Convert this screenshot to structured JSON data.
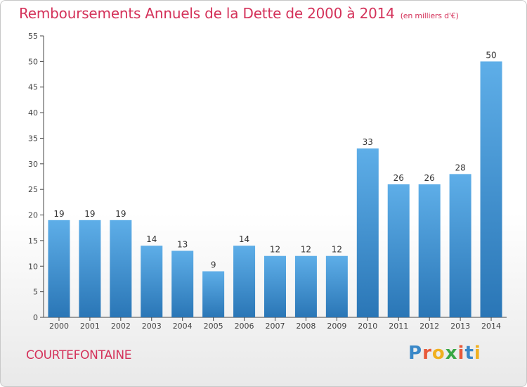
{
  "header": {
    "title": "Remboursements Annuels de la Dette de 2000 à 2014",
    "unit": "(en milliers d'€)"
  },
  "footer": {
    "commune": "COURTEFONTAINE",
    "logo_text": "Proxiti"
  },
  "colors": {
    "title": "#d4325a",
    "bar_light": "#5aaae6",
    "bar_dark": "#2a78b8",
    "axis": "#444444",
    "grid": "#cccccc"
  },
  "chart_data": {
    "type": "bar",
    "categories": [
      "2000",
      "2001",
      "2002",
      "2003",
      "2004",
      "2005",
      "2006",
      "2007",
      "2008",
      "2009",
      "2010",
      "2011",
      "2012",
      "2013",
      "2014"
    ],
    "values": [
      19,
      19,
      19,
      14,
      13,
      9,
      14,
      12,
      12,
      12,
      33,
      26,
      26,
      28,
      50
    ],
    "ylim": [
      0,
      55
    ],
    "yticks": [
      0,
      5,
      10,
      15,
      20,
      25,
      30,
      35,
      40,
      45,
      50,
      55
    ],
    "grid": false,
    "legend": "none"
  }
}
